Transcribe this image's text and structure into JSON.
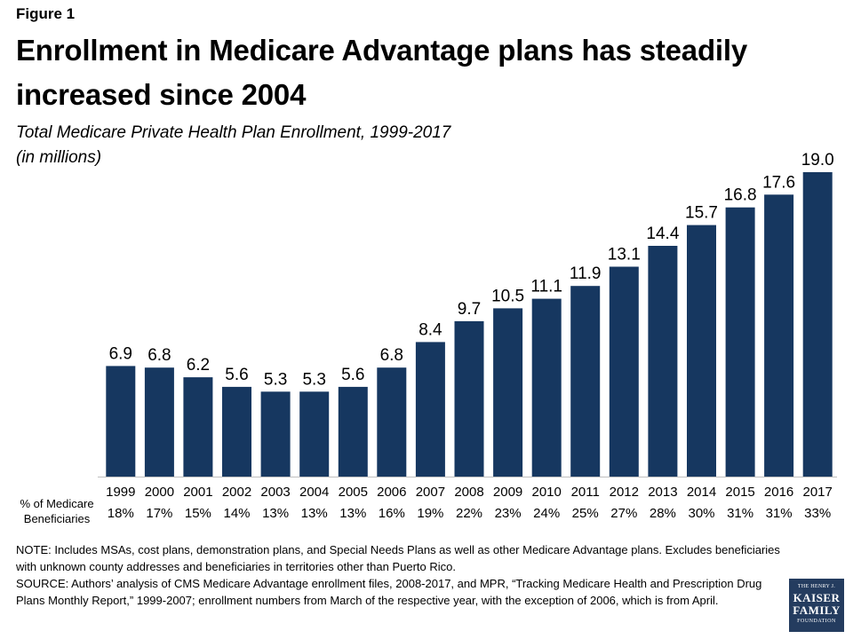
{
  "figure_label": "Figure 1",
  "title": "Enrollment in Medicare Advantage plans has steadily increased since 2004",
  "subtitle_lines": [
    "Total Medicare Private Health Plan Enrollment, 1999-2017",
    "(in millions)"
  ],
  "pct_row_label_lines": [
    "% of Medicare",
    "Beneficiaries"
  ],
  "chart_data": {
    "type": "bar",
    "categories": [
      "1999",
      "2000",
      "2001",
      "2002",
      "2003",
      "2004",
      "2005",
      "2006",
      "2007",
      "2008",
      "2009",
      "2010",
      "2011",
      "2012",
      "2013",
      "2014",
      "2015",
      "2016",
      "2017"
    ],
    "values": [
      6.9,
      6.8,
      6.2,
      5.6,
      5.3,
      5.3,
      5.6,
      6.8,
      8.4,
      9.7,
      10.5,
      11.1,
      11.9,
      13.1,
      14.4,
      15.7,
      16.8,
      17.6,
      19.0
    ],
    "data_labels": [
      "6.9",
      "6.8",
      "6.2",
      "5.6",
      "5.3",
      "5.3",
      "5.6",
      "6.8",
      "8.4",
      "9.7",
      "10.5",
      "11.1",
      "11.9",
      "13.1",
      "14.4",
      "15.7",
      "16.8",
      "17.6",
      "19.0"
    ],
    "percent_of_beneficiaries": [
      "18%",
      "17%",
      "15%",
      "14%",
      "13%",
      "13%",
      "13%",
      "16%",
      "19%",
      "22%",
      "23%",
      "24%",
      "25%",
      "27%",
      "28%",
      "30%",
      "31%",
      "31%",
      "33%"
    ],
    "title": "Enrollment in Medicare Advantage plans has steadily increased since 2004",
    "subtitle": "Total Medicare Private Health Plan Enrollment, 1999-2017 (in millions)",
    "xlabel": "",
    "ylabel": "",
    "ylim": [
      0,
      19.0
    ],
    "grid": false,
    "legend": "none",
    "bar_color": "#163760"
  },
  "notes": {
    "note": "NOTE: Includes MSAs, cost plans, demonstration plans, and Special Needs Plans as well as other Medicare Advantage plans. Excludes beneficiaries with unknown county addresses and beneficiaries in territories other than Puerto Rico.",
    "source": "SOURCE: Authors’ analysis of CMS Medicare Advantage enrollment files, 2008-2017, and MPR, “Tracking Medicare Health and Prescription Drug Plans Monthly Report,” 1999-2007; enrollment numbers from March of the respective year, with the exception of 2006, which is from April."
  },
  "logo": {
    "line1": "THE HENRY J.",
    "line2": "KAISER",
    "line3": "FAMILY",
    "line4": "FOUNDATION",
    "color": "#243c5f"
  }
}
